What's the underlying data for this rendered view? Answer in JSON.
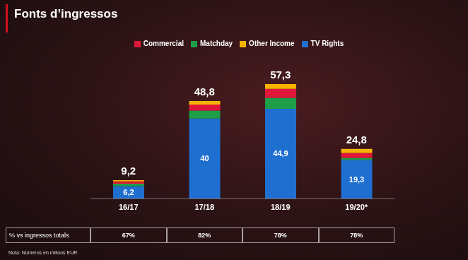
{
  "chart_data": {
    "type": "bar",
    "title": "Fonts d’ingressos",
    "stacked": true,
    "tick_labels": "x",
    "legend": "top",
    "categories": [
      "16/17",
      "17/18",
      "18/19",
      "19/20*"
    ],
    "ylim": [
      0,
      70
    ],
    "series": [
      {
        "name": "TV Rights",
        "color": "#1f6fd1",
        "values": [
          6.2,
          40,
          44.9,
          19.3
        ],
        "value_labels": [
          "6,2",
          "40",
          "44,9",
          "19,3"
        ],
        "data_labels": true
      },
      {
        "name": "Matchday",
        "color": "#1e9e48",
        "values": [
          1.2,
          4.0,
          5.5,
          1.0
        ]
      },
      {
        "name": "Commercial",
        "color": "#e0163a",
        "values": [
          1.2,
          3.0,
          4.5,
          2.5
        ]
      },
      {
        "name": "Other Income",
        "color": "#f5b400",
        "values": [
          0.6,
          1.8,
          2.4,
          2.0
        ]
      }
    ],
    "totals": [
      9.2,
      48.8,
      57.3,
      24.8
    ],
    "total_labels": [
      "9,2",
      "48,8",
      "57,3",
      "24,8"
    ],
    "table": {
      "header": "% vs ingressos totals",
      "values": [
        67,
        82,
        78,
        78
      ],
      "labels": [
        "67%",
        "82%",
        "78%",
        "78%"
      ]
    },
    "note": "Nota: Números en milions EUR"
  }
}
